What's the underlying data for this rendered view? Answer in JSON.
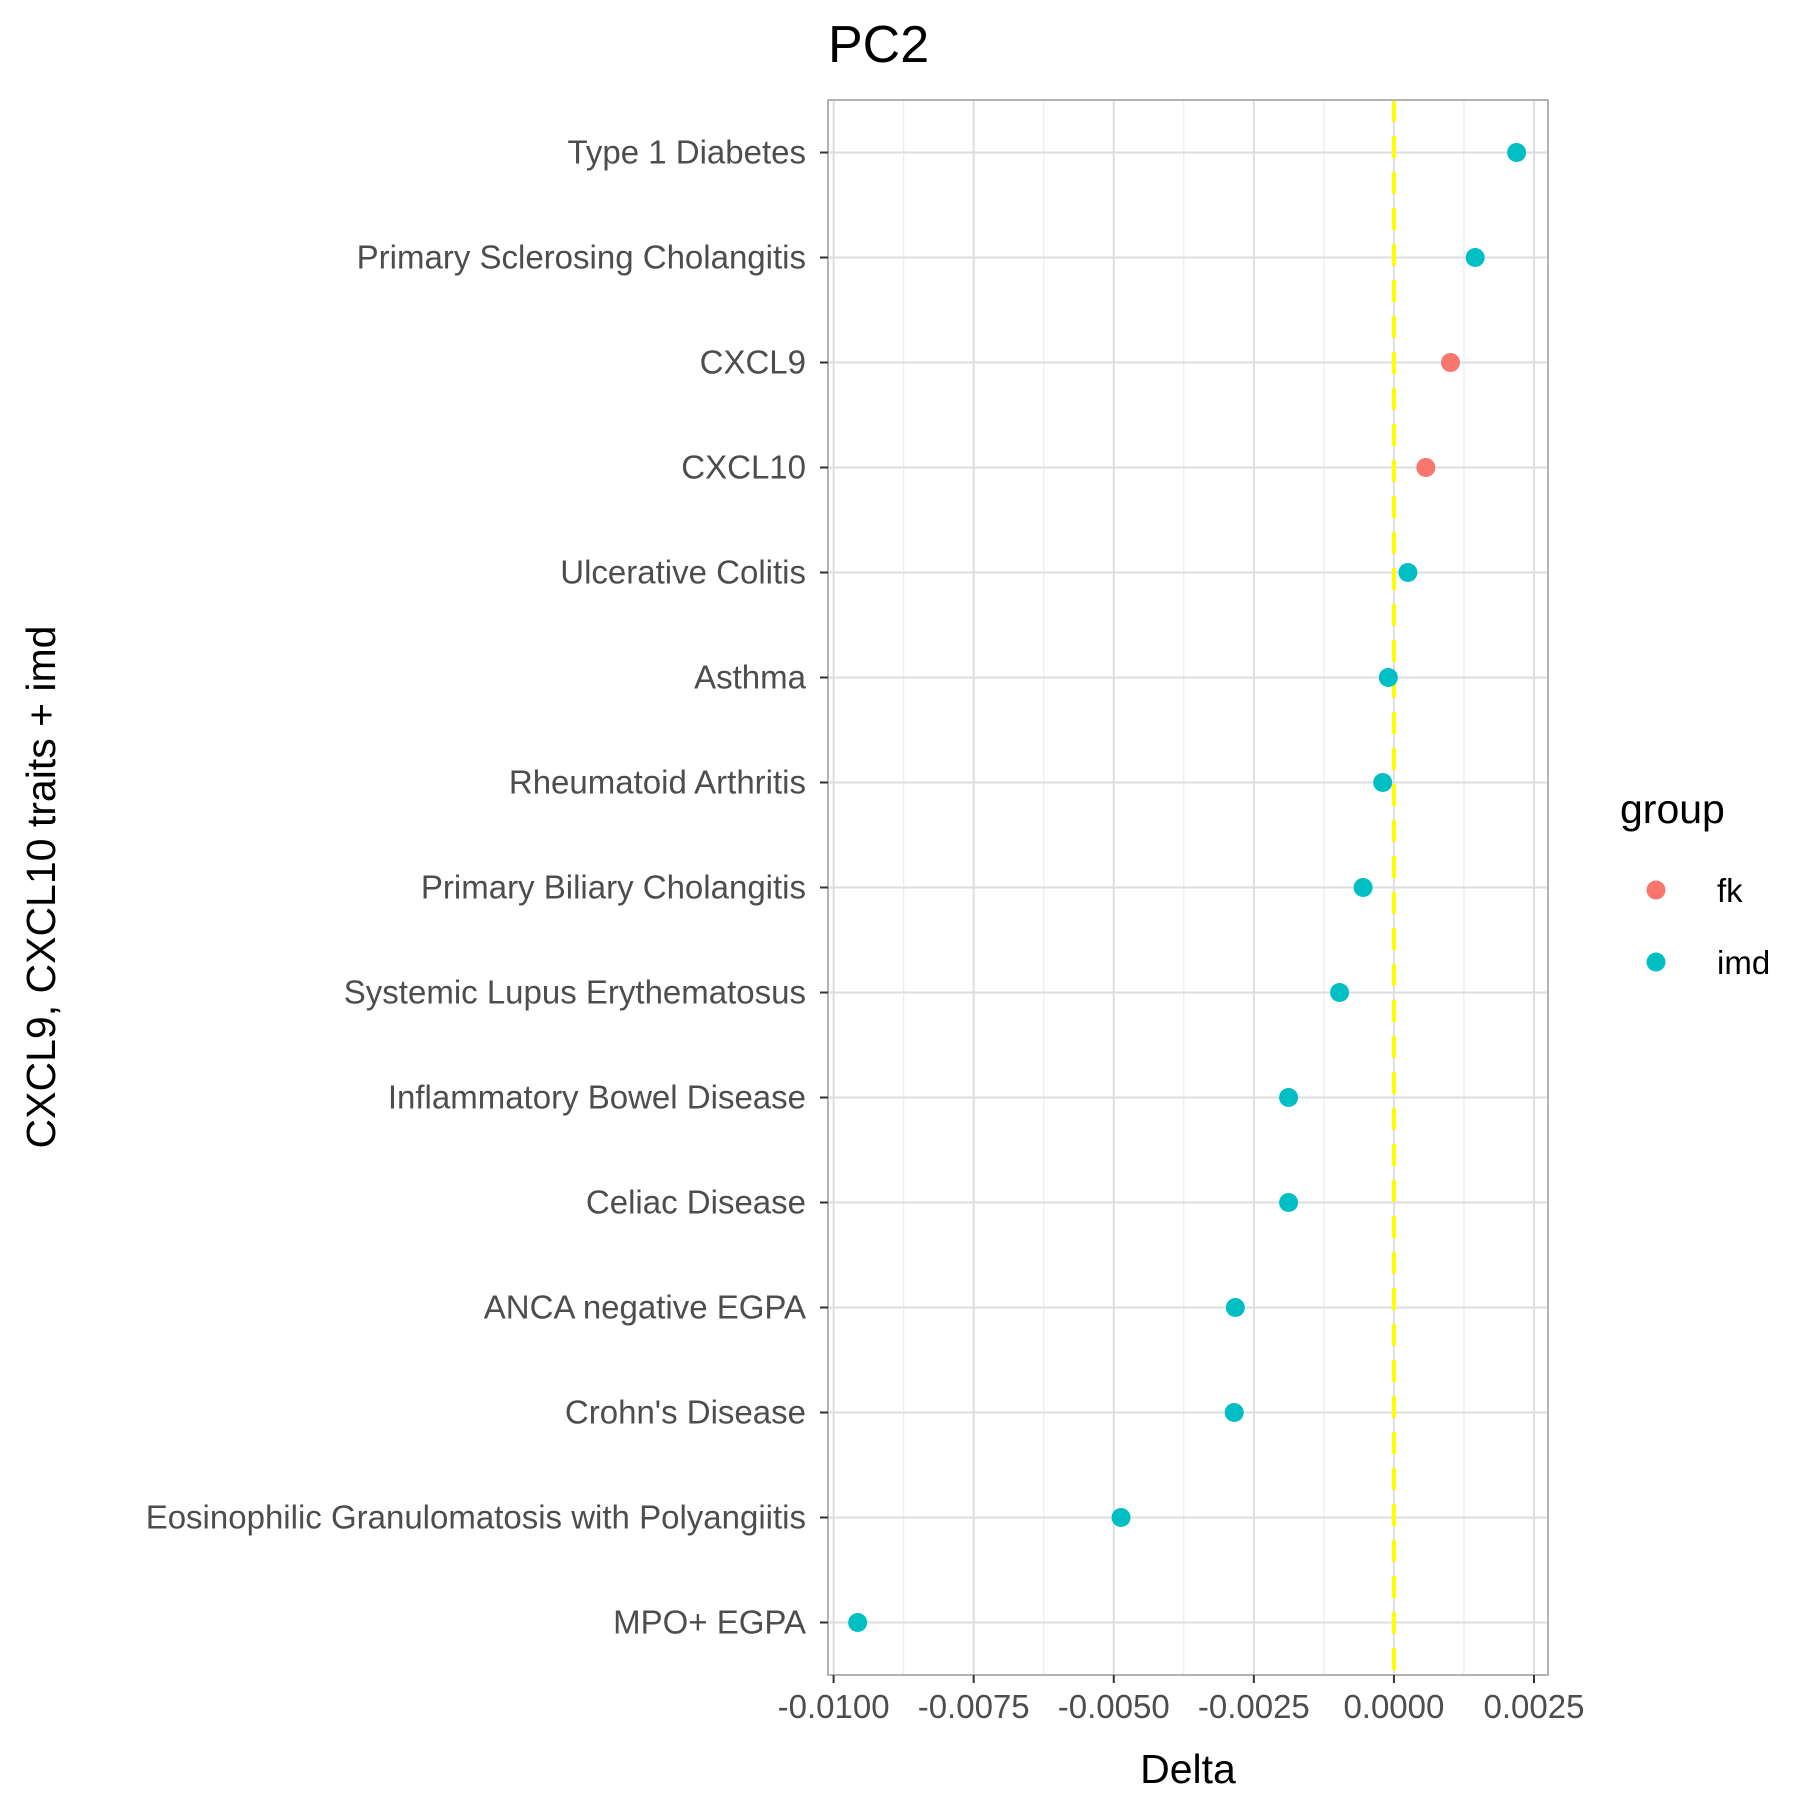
{
  "chart_data": {
    "type": "scatter",
    "title": "PC2",
    "xlabel": "Delta",
    "ylabel": "CXCL9, CXCL10 traits + imd",
    "xlim": [
      -0.0101,
      0.00275
    ],
    "xticks": [
      -0.01,
      -0.0075,
      -0.005,
      -0.0025,
      0.0,
      0.0025
    ],
    "xtick_labels": [
      "-0.0100",
      "-0.0075",
      "-0.0050",
      "-0.0025",
      "0.0000",
      "0.0025"
    ],
    "reference_line": {
      "x": 0.0,
      "style": "dashed",
      "color": "#FFFF00"
    },
    "grid": true,
    "legend": {
      "title": "group",
      "position": "right",
      "entries": [
        {
          "label": "fk",
          "color": "#F8766D"
        },
        {
          "label": "imd",
          "color": "#00BFC4"
        }
      ]
    },
    "categories": [
      "Type 1 Diabetes",
      "Primary Sclerosing Cholangitis",
      "CXCL9",
      "CXCL10",
      "Ulcerative Colitis",
      "Asthma",
      "Rheumatoid Arthritis",
      "Primary Biliary Cholangitis",
      "Systemic Lupus Erythematosus",
      "Inflammatory Bowel Disease",
      "Celiac Disease",
      "ANCA negative EGPA",
      "Crohn's Disease",
      "Eosinophilic Granulomatosis with Polyangiitis",
      "MPO+ EGPA"
    ],
    "points": [
      {
        "label": "Type 1 Diabetes",
        "x": 0.00219,
        "group": "imd"
      },
      {
        "label": "Primary Sclerosing Cholangitis",
        "x": 0.00145,
        "group": "imd"
      },
      {
        "label": "CXCL9",
        "x": 0.00101,
        "group": "fk"
      },
      {
        "label": "CXCL10",
        "x": 0.00057,
        "group": "fk"
      },
      {
        "label": "Ulcerative Colitis",
        "x": 0.00025,
        "group": "imd"
      },
      {
        "label": "Asthma",
        "x": -0.0001,
        "group": "imd"
      },
      {
        "label": "Rheumatoid Arthritis",
        "x": -0.0002,
        "group": "imd"
      },
      {
        "label": "Primary Biliary Cholangitis",
        "x": -0.00055,
        "group": "imd"
      },
      {
        "label": "Systemic Lupus Erythematosus",
        "x": -0.00097,
        "group": "imd"
      },
      {
        "label": "Inflammatory Bowel Disease",
        "x": -0.00188,
        "group": "imd"
      },
      {
        "label": "Celiac Disease",
        "x": -0.00188,
        "group": "imd"
      },
      {
        "label": "ANCA negative EGPA",
        "x": -0.00283,
        "group": "imd"
      },
      {
        "label": "Crohn's Disease",
        "x": -0.00285,
        "group": "imd"
      },
      {
        "label": "Eosinophilic Granulomatosis with Polyangiitis",
        "x": -0.00487,
        "group": "imd"
      },
      {
        "label": "MPO+ EGPA",
        "x": -0.00957,
        "group": "imd"
      }
    ]
  }
}
